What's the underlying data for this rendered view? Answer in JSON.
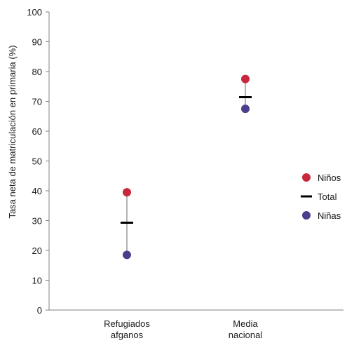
{
  "chart_data": {
    "type": "scatter",
    "categories": [
      "Refugiados afganos",
      "Media nacional"
    ],
    "category_lines": [
      [
        "Refugiados",
        "afganos"
      ],
      [
        "Media",
        "nacional"
      ]
    ],
    "ylabel": "Tasa neta de matriculación en primaria (%)",
    "xlabel": "",
    "ylim": [
      0,
      100
    ],
    "yticks": [
      0,
      10,
      20,
      30,
      40,
      50,
      60,
      70,
      80,
      90,
      100
    ],
    "grid": false,
    "legend_position": "right",
    "series": [
      {
        "name": "Niños",
        "values": [
          39.5,
          77.5
        ],
        "marker": "circle",
        "color": "#c8283c"
      },
      {
        "name": "Total",
        "values": [
          29.3,
          71.4
        ],
        "marker": "dash",
        "color": "#000000"
      },
      {
        "name": "Niñas",
        "values": [
          18.5,
          67.5
        ],
        "marker": "circle",
        "color": "#4a3f8c"
      }
    ],
    "range_line_color": "#b3b3b3",
    "axis_color": "#808080"
  }
}
